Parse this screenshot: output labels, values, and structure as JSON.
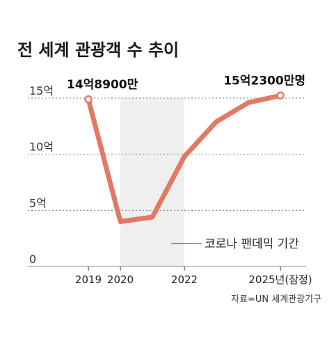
{
  "title": "전 세계 관광객 수 추이",
  "source": "자료=UN 세계관광기구",
  "colors": {
    "line": "#e07a64",
    "shade": "#eeefee",
    "grid": "#777777",
    "axis": "#888888"
  },
  "chart_data": {
    "type": "line",
    "title": "전 세계 관광객 수 추이",
    "xlabel": "",
    "ylabel": "",
    "xlim": [
      2019,
      2025
    ],
    "ylim": [
      0,
      15
    ],
    "y_unit": "억",
    "grid": true,
    "y_ticks": [
      {
        "value": 15,
        "label": "15억"
      },
      {
        "value": 10,
        "label": "10억"
      },
      {
        "value": 5,
        "label": "5억"
      },
      {
        "value": 0,
        "label": "0"
      }
    ],
    "x_ticks": [
      {
        "value": 2019,
        "label": "2019"
      },
      {
        "value": 2020,
        "label": "2020"
      },
      {
        "value": 2022,
        "label": "2022"
      },
      {
        "value": 2025,
        "label": "2025년(잠정)"
      }
    ],
    "series": [
      {
        "x": [
          2019,
          2020,
          2021,
          2022,
          2023,
          2024,
          2025
        ],
        "values": [
          14.89,
          4.0,
          4.4,
          9.8,
          12.9,
          14.6,
          15.23
        ]
      }
    ],
    "point_labels": [
      {
        "x": 2019,
        "value": 14.89,
        "text": "14억8900만"
      },
      {
        "x": 2025,
        "value": 15.23,
        "text": "15억2300만명"
      }
    ],
    "shaded_region": {
      "x": [
        2020,
        2022
      ],
      "label": "코로나 팬데믹 기간"
    }
  }
}
